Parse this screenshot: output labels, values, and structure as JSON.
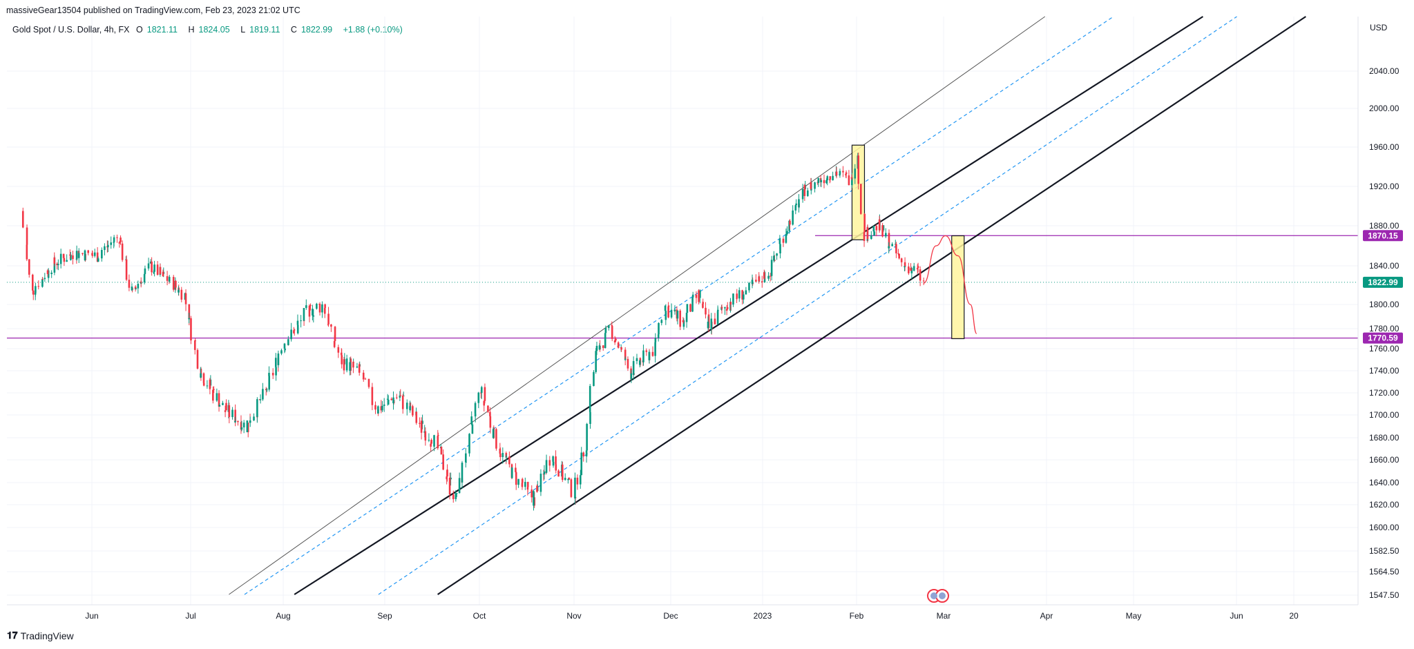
{
  "header": {
    "publisher": "massiveGear13504 published on TradingView.com, Feb 23, 2023 21:02 UTC"
  },
  "legend": {
    "symbol": "Gold Spot / U.S. Dollar, 4h, FX",
    "open_label": "O",
    "open": "1821.11",
    "high_label": "H",
    "high": "1824.05",
    "low_label": "L",
    "low": "1819.11",
    "close_label": "C",
    "close": "1822.99",
    "change": "+1.88 (+0.10%)"
  },
  "footer": {
    "brand": "TradingView"
  },
  "chart_data": {
    "type": "candlestick",
    "currency": "USD",
    "y_ticks": [
      "2040.00",
      "2000.00",
      "1960.00",
      "1920.00",
      "1880.00",
      "1840.00",
      "1800.00",
      "1780.00",
      "1760.00",
      "1740.00",
      "1720.00",
      "1700.00",
      "1680.00",
      "1660.00",
      "1640.00",
      "1620.00",
      "1600.00",
      "1582.50",
      "1564.50",
      "1547.50"
    ],
    "x_ticks": [
      "Jun",
      "Jul",
      "Aug",
      "Sep",
      "Oct",
      "Nov",
      "Dec",
      "2023",
      "Feb",
      "Mar",
      "Apr",
      "May",
      "Jun",
      "20"
    ],
    "price_labels": [
      {
        "value": "1870.15",
        "color": "#9c27b0"
      },
      {
        "value": "1822.99",
        "color": "#089981"
      },
      {
        "value": "1770.59",
        "color": "#9c27b0"
      }
    ],
    "horizontal_levels": [
      1870.15,
      1770.59
    ],
    "last_price": 1822.99,
    "price_path": [
      [
        "2022-05-10",
        1895
      ],
      [
        "2022-05-13",
        1812
      ],
      [
        "2022-05-20",
        1842
      ],
      [
        "2022-05-27",
        1853
      ],
      [
        "2022-06-03",
        1850
      ],
      [
        "2022-06-10",
        1870
      ],
      [
        "2022-06-14",
        1810
      ],
      [
        "2022-06-20",
        1840
      ],
      [
        "2022-06-28",
        1820
      ],
      [
        "2022-07-01",
        1810
      ],
      [
        "2022-07-06",
        1740
      ],
      [
        "2022-07-14",
        1705
      ],
      [
        "2022-07-21",
        1690
      ],
      [
        "2022-07-27",
        1720
      ],
      [
        "2022-08-02",
        1765
      ],
      [
        "2022-08-10",
        1795
      ],
      [
        "2022-08-15",
        1800
      ],
      [
        "2022-08-20",
        1750
      ],
      [
        "2022-08-26",
        1740
      ],
      [
        "2022-09-01",
        1705
      ],
      [
        "2022-09-08",
        1718
      ],
      [
        "2022-09-15",
        1690
      ],
      [
        "2022-09-20",
        1675
      ],
      [
        "2022-09-26",
        1625
      ],
      [
        "2022-09-28",
        1645
      ],
      [
        "2022-10-04",
        1725
      ],
      [
        "2022-10-10",
        1670
      ],
      [
        "2022-10-14",
        1650
      ],
      [
        "2022-10-21",
        1625
      ],
      [
        "2022-10-27",
        1665
      ],
      [
        "2022-11-03",
        1630
      ],
      [
        "2022-11-07",
        1675
      ],
      [
        "2022-11-10",
        1755
      ],
      [
        "2022-11-15",
        1780
      ],
      [
        "2022-11-21",
        1738
      ],
      [
        "2022-11-29",
        1760
      ],
      [
        "2022-12-02",
        1800
      ],
      [
        "2022-12-08",
        1785
      ],
      [
        "2022-12-13",
        1810
      ],
      [
        "2022-12-16",
        1780
      ],
      [
        "2022-12-22",
        1800
      ],
      [
        "2022-12-29",
        1815
      ],
      [
        "2023-01-05",
        1835
      ],
      [
        "2023-01-10",
        1875
      ],
      [
        "2023-01-16",
        1915
      ],
      [
        "2023-01-20",
        1925
      ],
      [
        "2023-01-26",
        1935
      ],
      [
        "2023-01-31",
        1925
      ],
      [
        "2023-02-02",
        1955
      ],
      [
        "2023-02-04",
        1870
      ],
      [
        "2023-02-09",
        1880
      ],
      [
        "2023-02-14",
        1855
      ],
      [
        "2023-02-17",
        1840
      ],
      [
        "2023-02-21",
        1835
      ],
      [
        "2023-02-23",
        1822.99
      ]
    ],
    "projection": [
      [
        "2023-02-23",
        1822
      ],
      [
        "2023-02-27",
        1860
      ],
      [
        "2023-03-02",
        1870
      ],
      [
        "2023-03-06",
        1850
      ],
      [
        "2023-03-10",
        1800
      ],
      [
        "2023-03-12",
        1775
      ]
    ],
    "channel_lines": [
      {
        "style": "solid-thin",
        "points": [
          [
            "2022-07-15",
            1548
          ],
          [
            "2023-02-01",
            1956
          ]
        ]
      },
      {
        "style": "dashed-blue",
        "points": [
          [
            "2022-07-20",
            1548
          ],
          [
            "2023-02-01",
            1918
          ]
        ]
      },
      {
        "style": "solid-thick",
        "points": [
          [
            "2022-08-05",
            1548
          ],
          [
            "2023-02-01",
            1868
          ]
        ]
      },
      {
        "style": "dashed-blue",
        "points": [
          [
            "2022-09-01",
            1548
          ],
          [
            "2023-02-01",
            1832
          ]
        ]
      },
      {
        "style": "solid-thick",
        "points": [
          [
            "2022-09-20",
            1548
          ],
          [
            "2023-02-01",
            1790
          ]
        ]
      }
    ],
    "highlight_boxes": [
      {
        "from": "2023-01-31",
        "to": "2023-02-04",
        "top": 1962,
        "bottom": 1866
      },
      {
        "from": "2023-03-04",
        "to": "2023-03-08",
        "top": 1870,
        "bottom": 1770
      }
    ],
    "colors": {
      "up": "#089981",
      "down": "#f23645",
      "level": "#9c27b0",
      "channel_dash": "#2196f3",
      "box_fill": "#fff59d",
      "projection": "#f23645"
    }
  }
}
